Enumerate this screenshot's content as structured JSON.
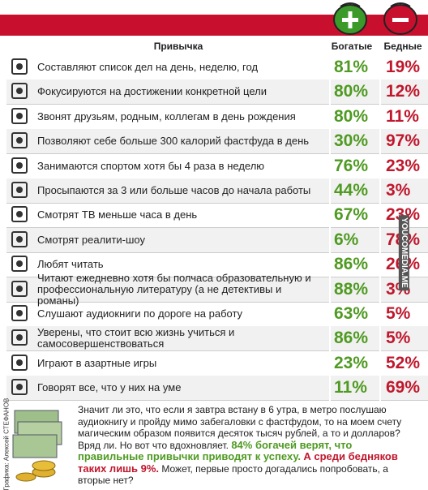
{
  "header": {
    "habit": "Привычка",
    "rich": "Богатые",
    "poor": "Бедные"
  },
  "rows": [
    {
      "text": "Составляют список дел на день, неделю, год",
      "rich": "81%",
      "poor": "19%"
    },
    {
      "text": "Фокусируются на достижении конкретной цели",
      "rich": "80%",
      "poor": "12%"
    },
    {
      "text": "Звонят друзьям, родным, коллегам в день рождения",
      "rich": "80%",
      "poor": "11%"
    },
    {
      "text": "Позволяют себе больше 300 калорий фастфуда в день",
      "rich": "30%",
      "poor": "97%"
    },
    {
      "text": "Занимаются спортом хотя бы 4 раза в неделю",
      "rich": "76%",
      "poor": "23%"
    },
    {
      "text": "Просыпаются за 3 или больше часов до начала работы",
      "rich": "44%",
      "poor": "3%"
    },
    {
      "text": "Смотрят ТВ меньше часа в день",
      "rich": "67%",
      "poor": "23%"
    },
    {
      "text": "Смотрят реалити-шоу",
      "rich": "6%",
      "poor": "78%"
    },
    {
      "text": "Любят читать",
      "rich": "86%",
      "poor": "26%"
    },
    {
      "text": "Читают ежедневно хотя бы полчаса образовательную и профессиональную литературу (а не детективы и романы)",
      "rich": "88%",
      "poor": "3%"
    },
    {
      "text": "Слушают аудиокниги по дороге на работу",
      "rich": "63%",
      "poor": "5%"
    },
    {
      "text": "Уверены, что стоит всю жизнь учиться и самосовершенствоваться",
      "rich": "86%",
      "poor": "5%"
    },
    {
      "text": "Играют в азартные игры",
      "rich": "23%",
      "poor": "52%"
    },
    {
      "text": "Говорят все, что у них на уме",
      "rich": "11%",
      "poor": "69%"
    }
  ],
  "footer": {
    "text_1": "Значит ли это, что если я завтра встану в 6 утра, в метро послушаю аудиокнигу и пройду мимо забегаловки с фастфудом, то на моем счету магическим образом появится десяток тысяч рублей, а то и долларов? Вряд ли. Но вот что вдохновляет.",
    "highlight_green": "84% богачей верят, что правильные привычки приводят к успеху.",
    "highlight_red": "А среди бедняков таких лишь 9%.",
    "text_2": "Может, первые просто догадались попробовать, а вторые нет?"
  },
  "credit": "Графика: Алексей СТЕФАНОВ",
  "watermark": "YOUCOMEDIA.ME"
}
